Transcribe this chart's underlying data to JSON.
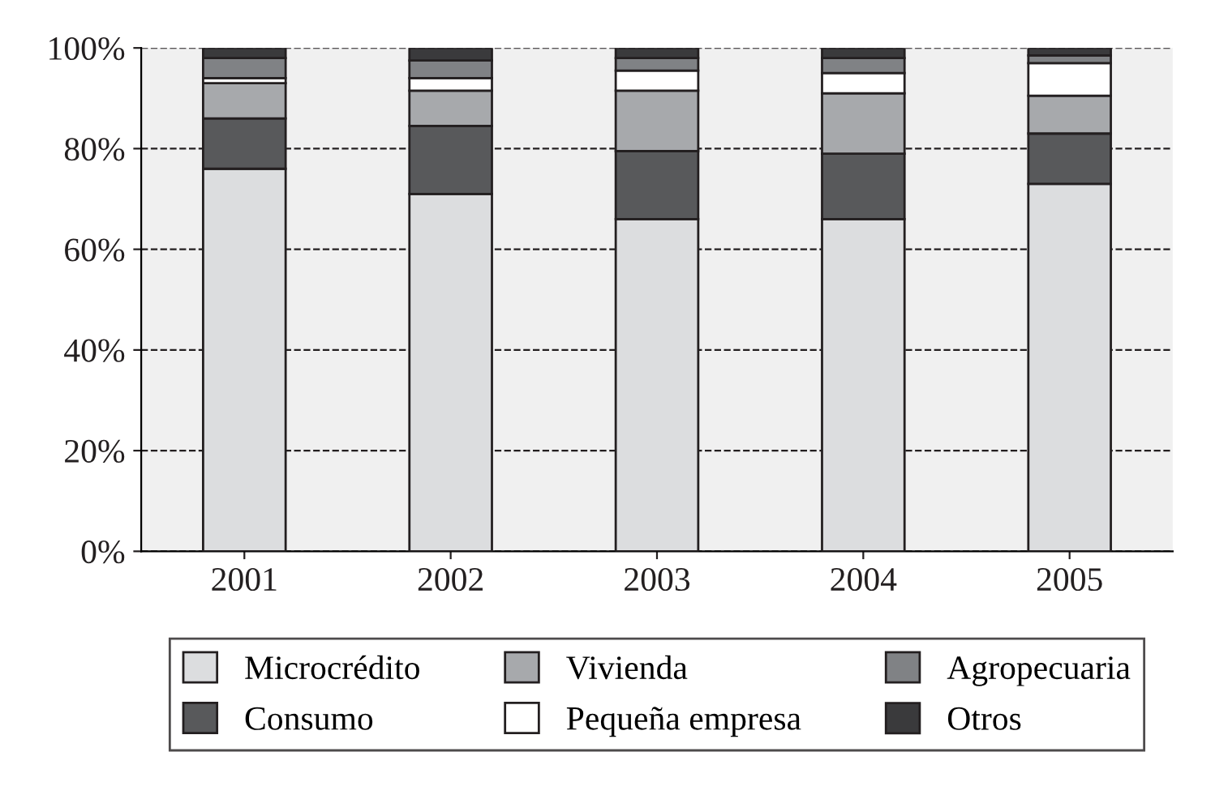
{
  "chart_data": {
    "type": "bar",
    "stacked": true,
    "categories": [
      "2001",
      "2002",
      "2003",
      "2004",
      "2005"
    ],
    "series": [
      {
        "name": "Microcrédito",
        "color": "#dcdddf",
        "values": [
          76,
          71,
          66,
          66,
          73
        ]
      },
      {
        "name": "Consumo",
        "color": "#58595b",
        "values": [
          10,
          13.5,
          13.5,
          13,
          10
        ]
      },
      {
        "name": "Vivienda",
        "color": "#a7a9ac",
        "values": [
          7,
          7,
          12,
          12,
          7.5
        ]
      },
      {
        "name": "Pequeña empresa",
        "color": "#ffffff",
        "values": [
          1,
          2.5,
          4,
          4,
          6.5
        ]
      },
      {
        "name": "Agropecuaria",
        "color": "#808285",
        "values": [
          4,
          3.5,
          2.5,
          3,
          1.5
        ]
      },
      {
        "name": "Otros",
        "color": "#3a3a3c",
        "values": [
          2,
          2.5,
          2,
          2,
          1.5
        ]
      }
    ],
    "ylim": [
      0,
      100
    ],
    "yticks": [
      {
        "value": 0,
        "label": "0%"
      },
      {
        "value": 20,
        "label": "20%"
      },
      {
        "value": 40,
        "label": "40%"
      },
      {
        "value": 60,
        "label": "60%"
      },
      {
        "value": 80,
        "label": "80%"
      },
      {
        "value": 100,
        "label": "100%"
      }
    ],
    "grid": "y",
    "legend": "bottom"
  }
}
